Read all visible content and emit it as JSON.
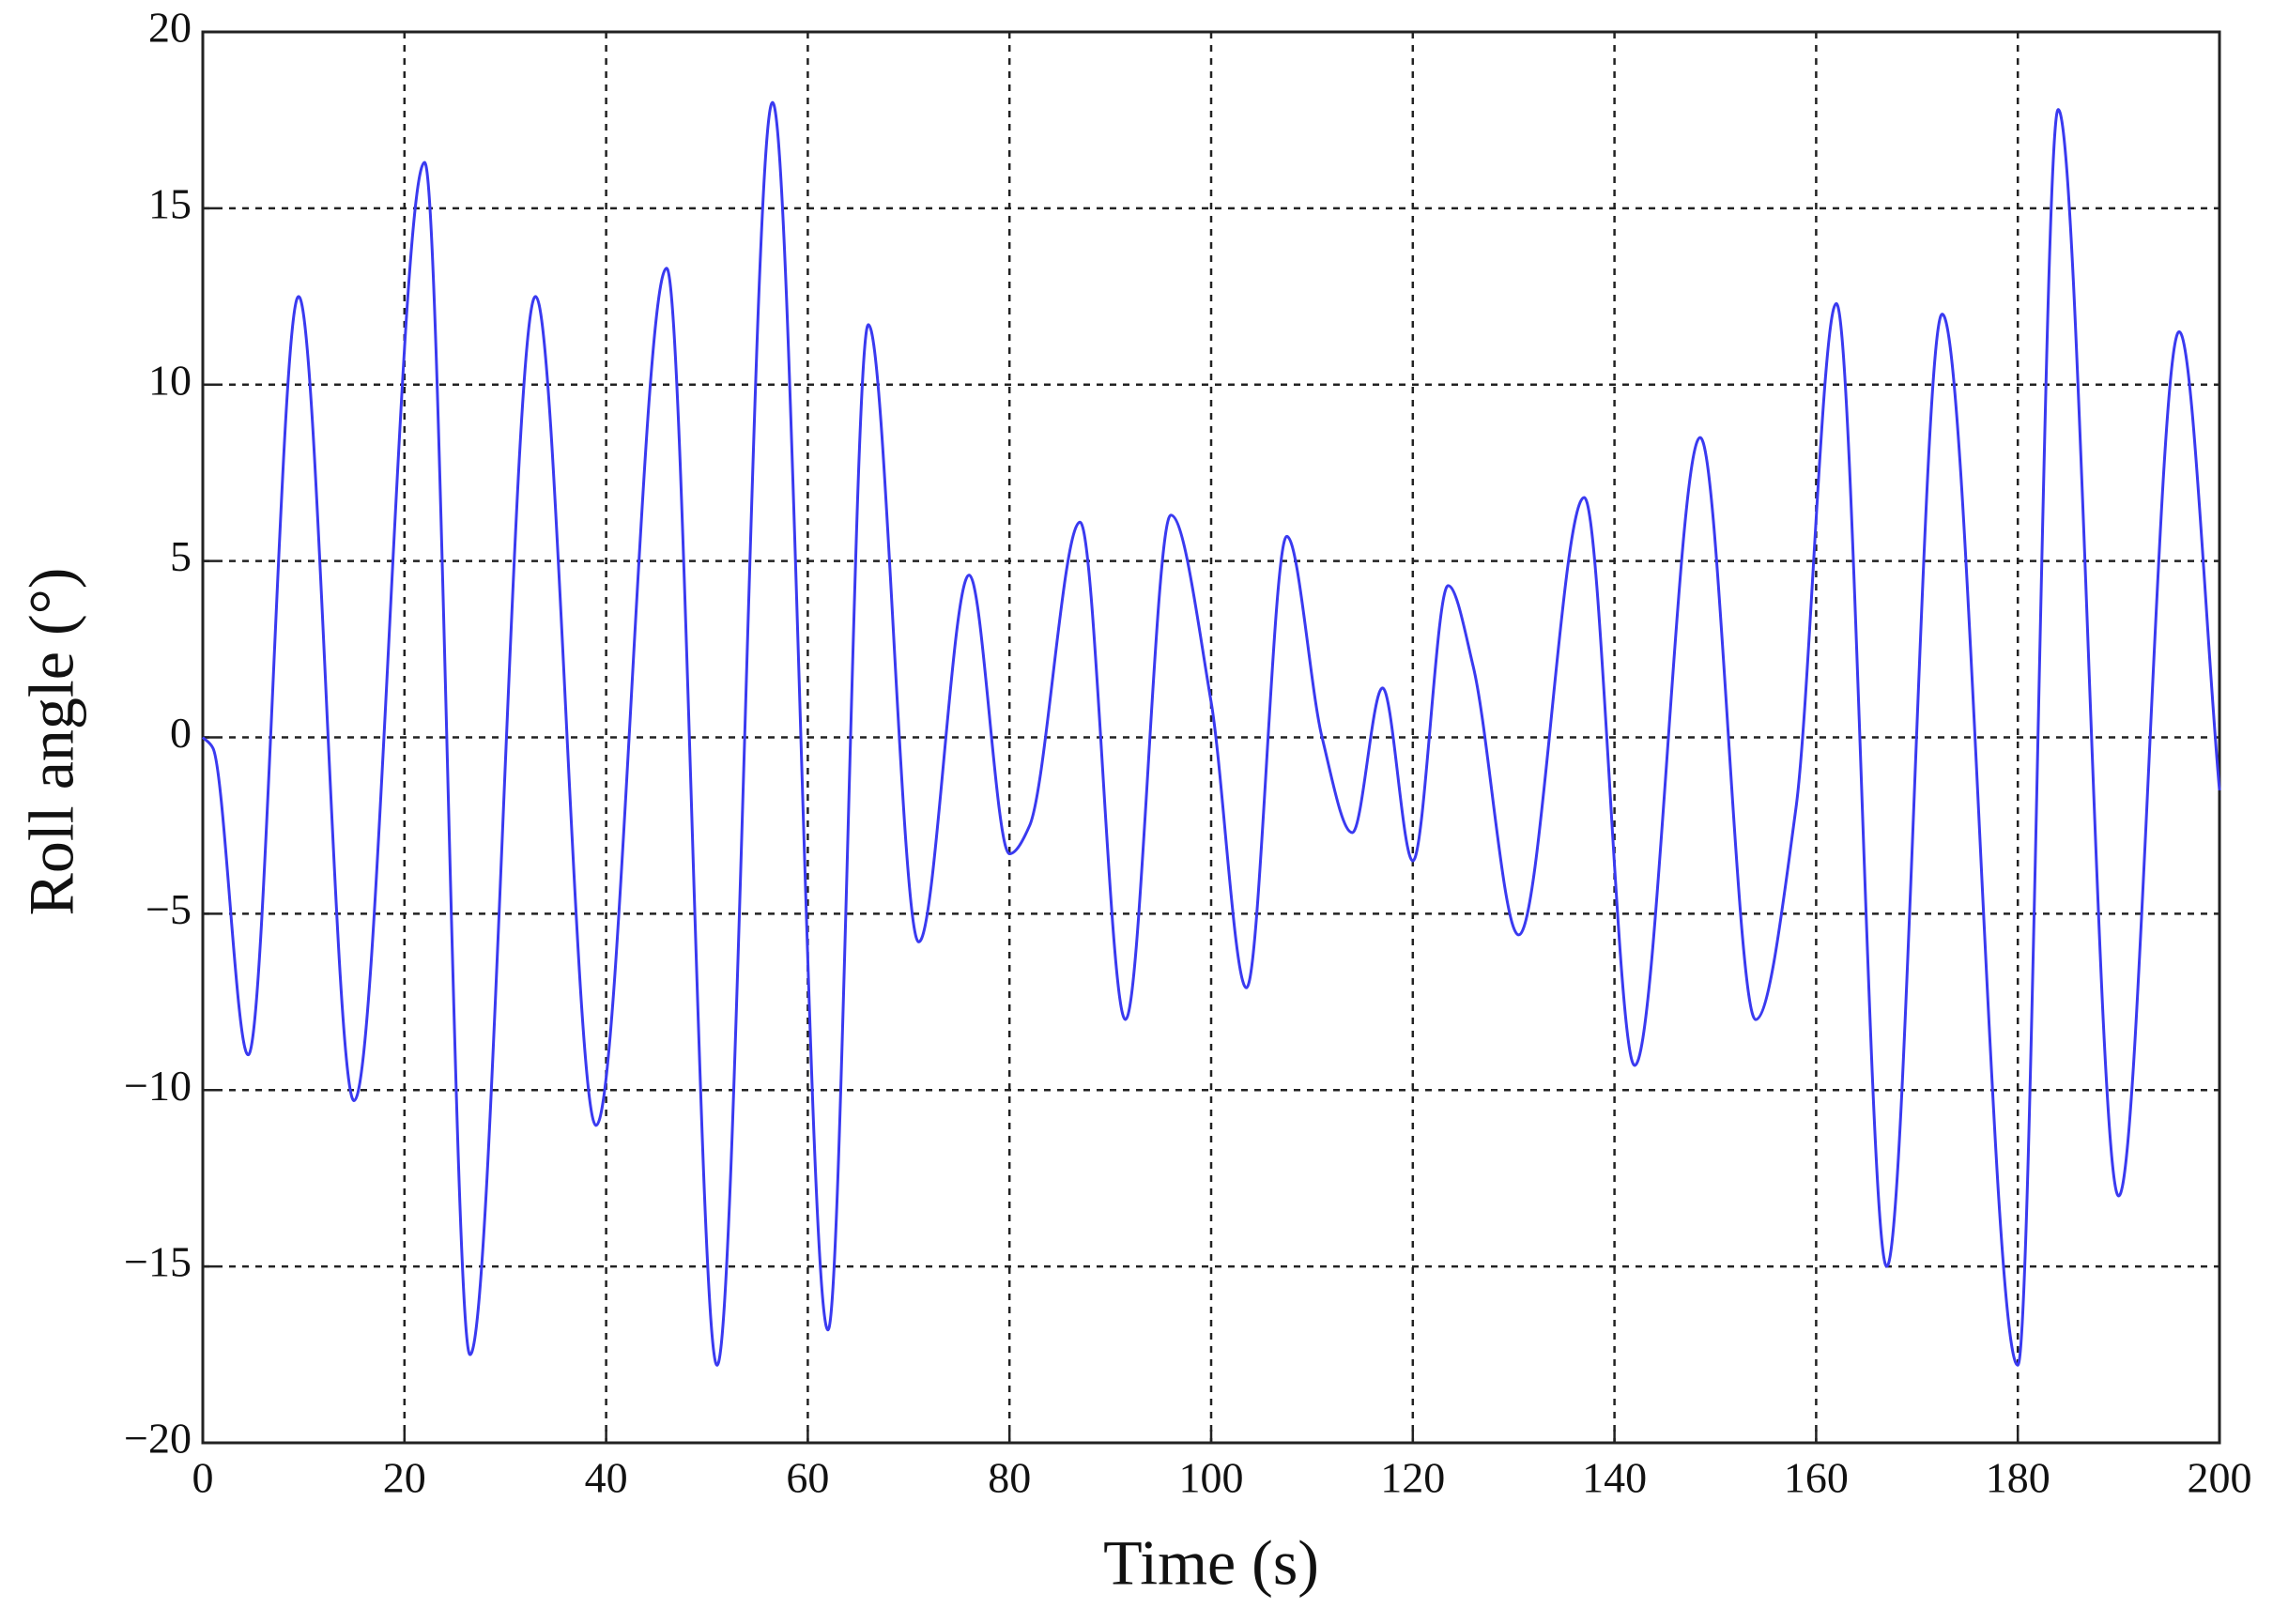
{
  "chart_data": {
    "type": "line",
    "xlabel": "Time (s)",
    "ylabel": "Roll angle (°)",
    "xlim": [
      0,
      200
    ],
    "ylim": [
      -20,
      20
    ],
    "xticks": [
      0,
      20,
      40,
      60,
      80,
      100,
      120,
      140,
      160,
      180,
      200
    ],
    "yticks": [
      {
        "value": -20,
        "label": "−20"
      },
      {
        "value": -15,
        "label": "−15"
      },
      {
        "value": -10,
        "label": "−10"
      },
      {
        "value": -5,
        "label": "−5"
      },
      0,
      5,
      10,
      15,
      20
    ],
    "grid": true,
    "series": [
      {
        "color": "#3a3af0",
        "x": [
          0,
          1,
          4.5,
          9.5,
          15,
          22,
          26.5,
          33,
          39,
          46,
          51,
          56.5,
          62,
          66,
          71,
          76,
          80,
          82,
          87,
          91.5,
          96,
          100,
          103.5,
          107.5,
          111,
          114,
          117,
          120,
          123.5,
          126,
          130.5,
          137,
          142,
          148.5,
          154,
          158,
          162,
          167,
          172.5,
          180,
          184,
          190,
          196,
          200
        ],
        "values": [
          0,
          -0.3,
          -9,
          12.5,
          -10.3,
          16.3,
          -17.5,
          12.5,
          -11,
          13.3,
          -17.8,
          18,
          -16.8,
          11.7,
          -5.8,
          4.6,
          -3.3,
          -2.5,
          6.1,
          -8,
          6.3,
          1,
          -7.1,
          5.7,
          0,
          -2.7,
          1.4,
          -3.5,
          4.3,
          2,
          -5.6,
          6.8,
          -9.3,
          8.5,
          -8,
          -2,
          12.3,
          -15,
          12,
          -17.8,
          17.8,
          -13,
          11.5,
          -1.5
        ]
      }
    ]
  }
}
